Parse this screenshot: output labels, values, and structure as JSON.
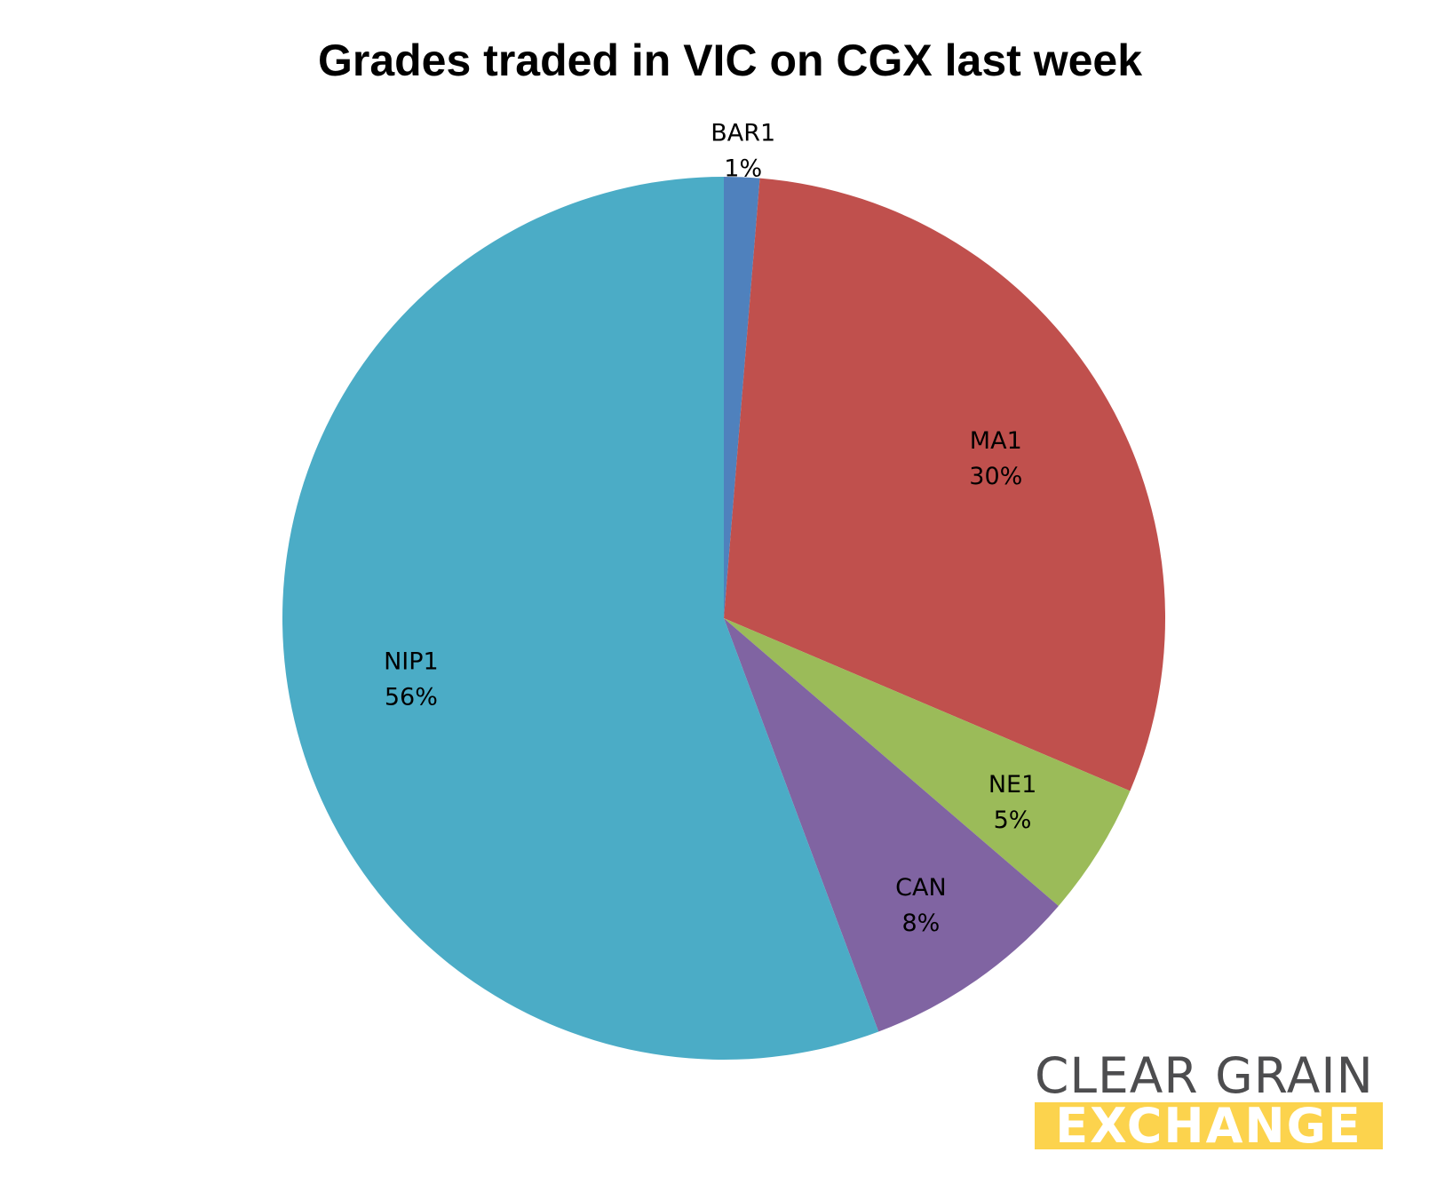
{
  "chart_data": {
    "type": "pie",
    "title": "Grades traded in VIC on CGX last week",
    "slices": [
      {
        "label": "BAR1",
        "percent_label": "1%",
        "value": 1.3,
        "color": "#4f81bd"
      },
      {
        "label": "MA1",
        "percent_label": "30%",
        "value": 30.1,
        "color": "#c0504d"
      },
      {
        "label": "NE1",
        "percent_label": "5%",
        "value": 4.9,
        "color": "#9bbb59"
      },
      {
        "label": "CAN",
        "percent_label": "8%",
        "value": 8.0,
        "color": "#8064a2"
      },
      {
        "label": "NIP1",
        "percent_label": "56%",
        "value": 55.7,
        "color": "#4bacc6"
      }
    ],
    "start_angle_deg": 0,
    "direction": "clockwise",
    "legend": "none",
    "data_labels": "category name and percentage"
  },
  "logo": {
    "line1": "CLEAR GRAIN",
    "line2": "EXCHANGE",
    "line1_color": "#4d4d4f",
    "line2_bg_color": "#fcd34d",
    "line2_text_color": "#ffffff"
  }
}
